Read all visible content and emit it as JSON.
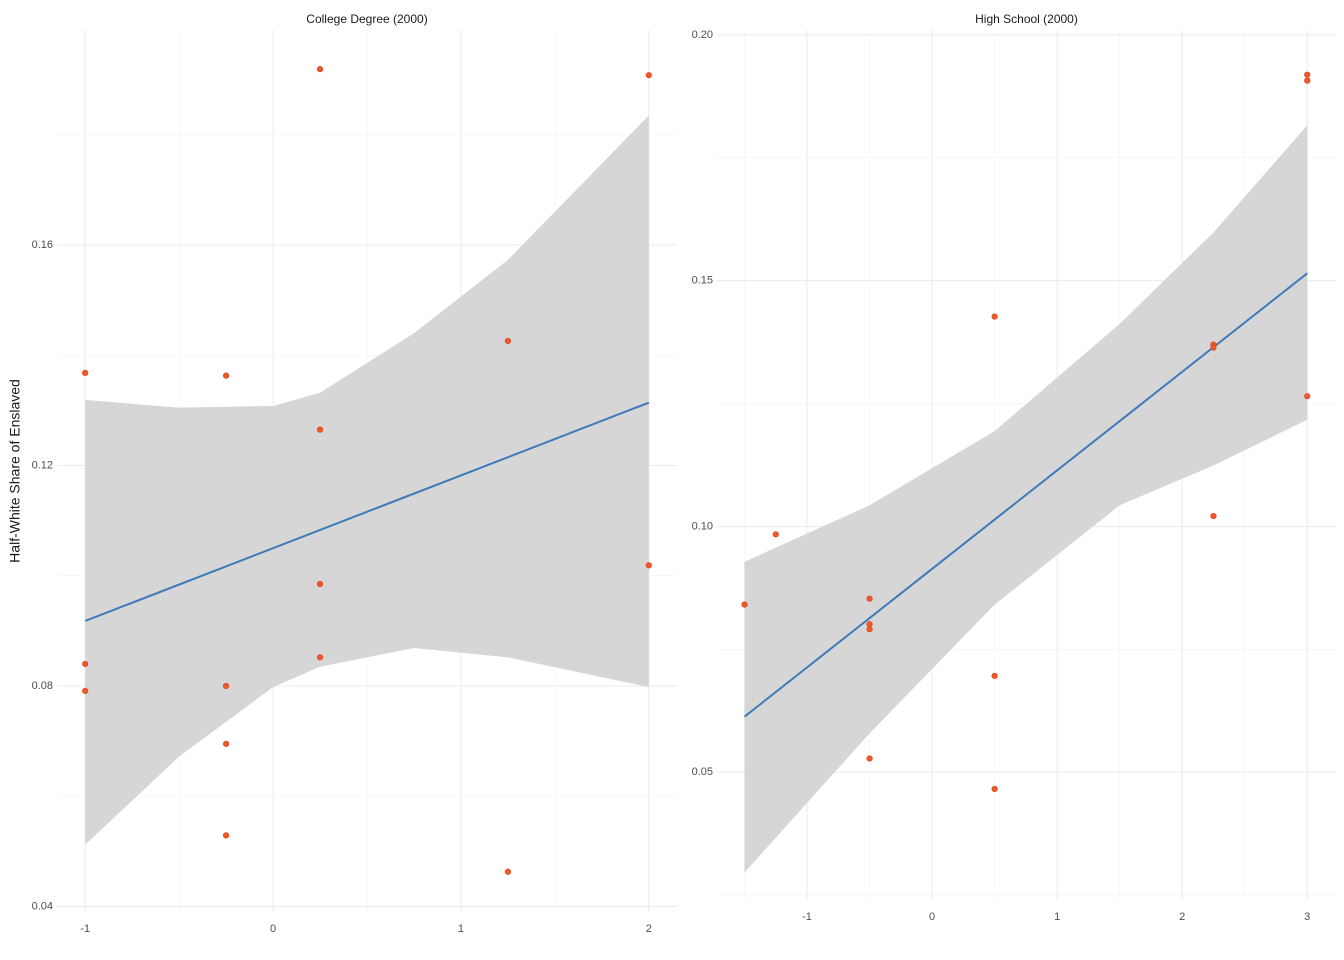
{
  "chart_data": [
    {
      "type": "scatter",
      "title": "College Degree (2000)",
      "y_label": "Half-White Share of Enslaved",
      "xlim": [
        -1.15,
        2.15
      ],
      "ylim": [
        0.039,
        0.199
      ],
      "xticks": [
        -1,
        0,
        1,
        2
      ],
      "yticks": [
        0.04,
        0.08,
        0.12,
        0.16
      ],
      "grid": true,
      "point_color": "#f0572a",
      "line_color": "#3f7ab8",
      "band_color": "#d6d6d6",
      "points": {
        "x": [
          -1,
          -1,
          -1,
          -0.25,
          -0.25,
          -0.25,
          -0.25,
          0.25,
          0.25,
          0.25,
          0.25,
          1.25,
          1.25,
          2,
          2
        ],
        "y": [
          0.1368,
          0.084,
          0.0791,
          0.1363,
          0.08,
          0.0695,
          0.0529,
          0.1919,
          0.1265,
          0.0985,
          0.0852,
          0.1426,
          0.0463,
          0.1908,
          0.1019
        ]
      },
      "fit": {
        "x": [
          -1,
          2
        ],
        "y": [
          0.0918,
          0.1314
        ]
      },
      "band": {
        "x": [
          -1,
          -0.5,
          0,
          0.25,
          0.75,
          1.25,
          2
        ],
        "upper": [
          0.1319,
          0.1305,
          0.1308,
          0.1332,
          0.144,
          0.1573,
          0.1835
        ],
        "lower": [
          0.0512,
          0.0672,
          0.0798,
          0.0835,
          0.0869,
          0.0852,
          0.0798
        ]
      }
    },
    {
      "type": "scatter",
      "title": "High School (2000)",
      "xlim": [
        -1.72,
        3.23
      ],
      "ylim": [
        0.024,
        0.201
      ],
      "xticks": [
        -1,
        0,
        1,
        2,
        3
      ],
      "yticks": [
        0.05,
        {
          "value": 0.1,
          "label": "0.10"
        },
        0.15,
        {
          "value": 0.2,
          "label": "0.20"
        }
      ],
      "grid": true,
      "point_color": "#f0572a",
      "line_color": "#3f7ab8",
      "band_color": "#d6d6d6",
      "points": {
        "x": [
          -1.5,
          -1.25,
          -0.5,
          -0.5,
          -0.5,
          -0.5,
          0.5,
          0.5,
          0.5,
          2.25,
          2.25,
          2.25,
          3,
          3,
          3
        ],
        "y": [
          0.0841,
          0.0984,
          0.0853,
          0.0801,
          0.0791,
          0.0528,
          0.1427,
          0.0696,
          0.0466,
          0.137,
          0.1364,
          0.1021,
          0.1919,
          0.1907,
          0.1265
        ]
      },
      "fit": {
        "x": [
          -1.5,
          3
        ],
        "y": [
          0.0613,
          0.1515
        ]
      },
      "band": {
        "x": [
          -1.5,
          -0.5,
          0.5,
          1.5,
          2.25,
          3
        ],
        "upper": [
          0.0928,
          0.1043,
          0.1194,
          0.1412,
          0.1598,
          0.1816
        ],
        "lower": [
          0.0296,
          0.0579,
          0.0841,
          0.1043,
          0.1124,
          0.1217
        ]
      }
    }
  ]
}
